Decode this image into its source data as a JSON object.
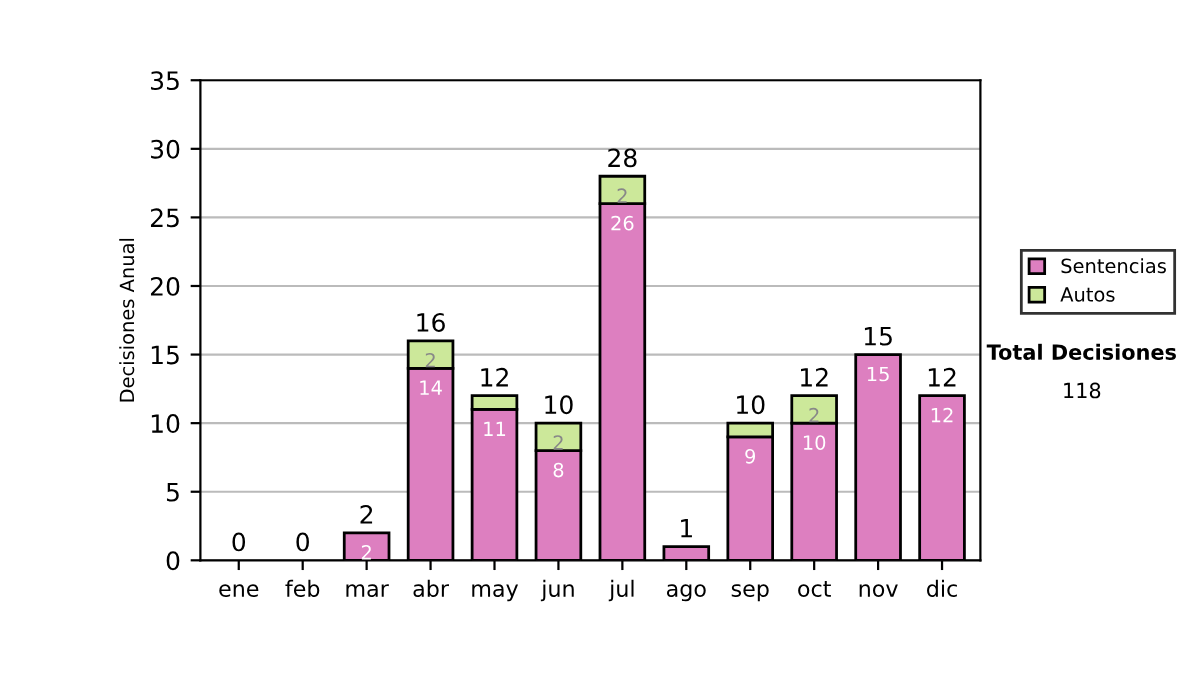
{
  "chart_data": {
    "type": "bar",
    "stacked": true,
    "ylabel": "Decisiones Anual",
    "categories": [
      "ene",
      "feb",
      "mar",
      "abr",
      "may",
      "jun",
      "jul",
      "ago",
      "sep",
      "oct",
      "nov",
      "dic"
    ],
    "series": [
      {
        "name": "Sentencias",
        "color": "#dd7fc0",
        "values": [
          0,
          0,
          2,
          14,
          11,
          8,
          26,
          1,
          9,
          10,
          15,
          12
        ],
        "value_labels": [
          null,
          null,
          "2",
          "14",
          "11",
          "8",
          "26",
          null,
          "9",
          "10",
          "15",
          "12"
        ]
      },
      {
        "name": "Autos",
        "color": "#cce89a",
        "values": [
          0,
          0,
          0,
          2,
          1,
          2,
          2,
          0,
          1,
          2,
          0,
          0
        ],
        "value_labels": [
          null,
          null,
          null,
          "2",
          null,
          "2",
          "2",
          null,
          null,
          "2",
          null,
          null
        ]
      }
    ],
    "totals": [
      "0",
      "0",
      "2",
      "16",
      "12",
      "10",
      "28",
      "1",
      "10",
      "12",
      "15",
      "12"
    ],
    "ylim": [
      0,
      35
    ],
    "yticks": [
      0,
      5,
      10,
      15,
      20,
      25,
      30,
      35
    ],
    "grid": "y",
    "legend": "right",
    "annotations": [
      "Total Decisiones",
      "118"
    ]
  }
}
